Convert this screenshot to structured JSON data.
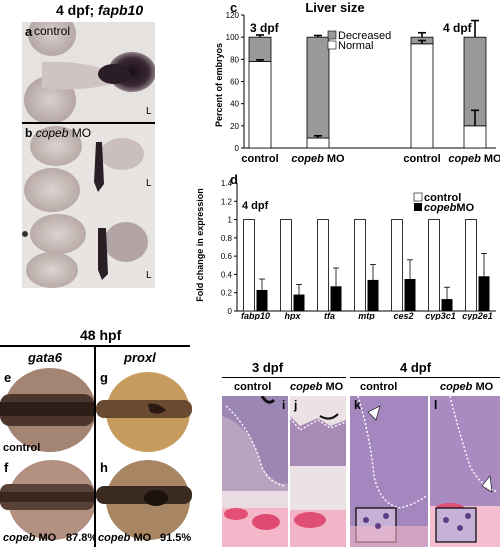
{
  "figure": {
    "panel_a_header": {
      "prefix": "4 dpf; ",
      "gene": "fapb10"
    },
    "panel_a": {
      "letter": "a",
      "label": "control",
      "corner": "L"
    },
    "panel_b": {
      "letter": "b",
      "label_gene": "copeb",
      "label_rest": " MO",
      "corner1": "L",
      "corner2": "L"
    },
    "hpf_header": "48 hpf",
    "panel_e": {
      "letter": "e",
      "gene": "gata6",
      "caption": "control"
    },
    "panel_f": {
      "letter": "f",
      "caption_gene": "copeb",
      "caption_rest": " MO",
      "percent": "87.8%"
    },
    "panel_g": {
      "letter": "g",
      "gene": "proxl"
    },
    "panel_h": {
      "letter": "h",
      "caption_gene": "copeb",
      "caption_rest": " MO",
      "percent": "91.5%"
    },
    "histology": {
      "header_left": "3 dpf",
      "header_right": "4 dpf",
      "cols": [
        {
          "letter": "i",
          "label_gene": "",
          "label": "control"
        },
        {
          "letter": "j",
          "label_gene": "copeb",
          "label": " MO"
        },
        {
          "letter": "k",
          "label_gene": "",
          "label": "control"
        },
        {
          "letter": "l",
          "label_gene": "copeb",
          "label": " MO"
        }
      ]
    },
    "panel_c_letter": "c",
    "panel_d_letter": "d"
  },
  "chart_data": [
    {
      "type": "bar",
      "title": "Liver size",
      "ylabel": "Percent of embryos",
      "ylim": [
        0,
        120
      ],
      "yticks": [
        0,
        20,
        40,
        60,
        80,
        100,
        120
      ],
      "group_labels": [
        "3 dpf",
        "4 dpf"
      ],
      "categories": [
        {
          "label": "control",
          "gene": ""
        },
        {
          "label": " MO",
          "gene": "copeb"
        },
        {
          "label": "control",
          "gene": ""
        },
        {
          "label": " MO",
          "gene": "copeb"
        }
      ],
      "stacked": true,
      "series": [
        {
          "name": "Normal",
          "color": "#ffffff",
          "values": [
            78,
            9,
            94,
            20
          ],
          "errors": [
            1.5,
            2,
            3,
            14
          ]
        },
        {
          "name": "Decreased",
          "color": "#999999",
          "values": [
            22,
            91,
            6,
            80
          ],
          "errors": [
            2,
            1.5,
            4,
            15
          ]
        }
      ],
      "legend_position": "top-right"
    },
    {
      "type": "bar",
      "annotation": "4 dpf",
      "ylabel": "Fold change in expression",
      "ylim": [
        0,
        1.4
      ],
      "yticks": [
        "0",
        "0.2",
        "0.4",
        "0.6",
        "0.8",
        "1",
        "1.2",
        "1.4"
      ],
      "categories": [
        "fabp10",
        "hpx",
        "tfa",
        "mtp",
        "ces2",
        "cyp3c1",
        "cyp2e1"
      ],
      "series": [
        {
          "name": "control",
          "color": "#ffffff",
          "values": [
            1,
            1,
            1,
            1,
            1,
            1,
            1
          ],
          "errors": [
            0,
            0,
            0,
            0,
            0,
            0,
            0
          ]
        },
        {
          "name": "MO",
          "gene": "copeb",
          "color": "#000000",
          "values": [
            0.23,
            0.18,
            0.27,
            0.34,
            0.35,
            0.13,
            0.38
          ],
          "errors": [
            0.12,
            0.11,
            0.2,
            0.17,
            0.21,
            0.13,
            0.25
          ]
        }
      ],
      "legend_position": "top-right"
    }
  ]
}
